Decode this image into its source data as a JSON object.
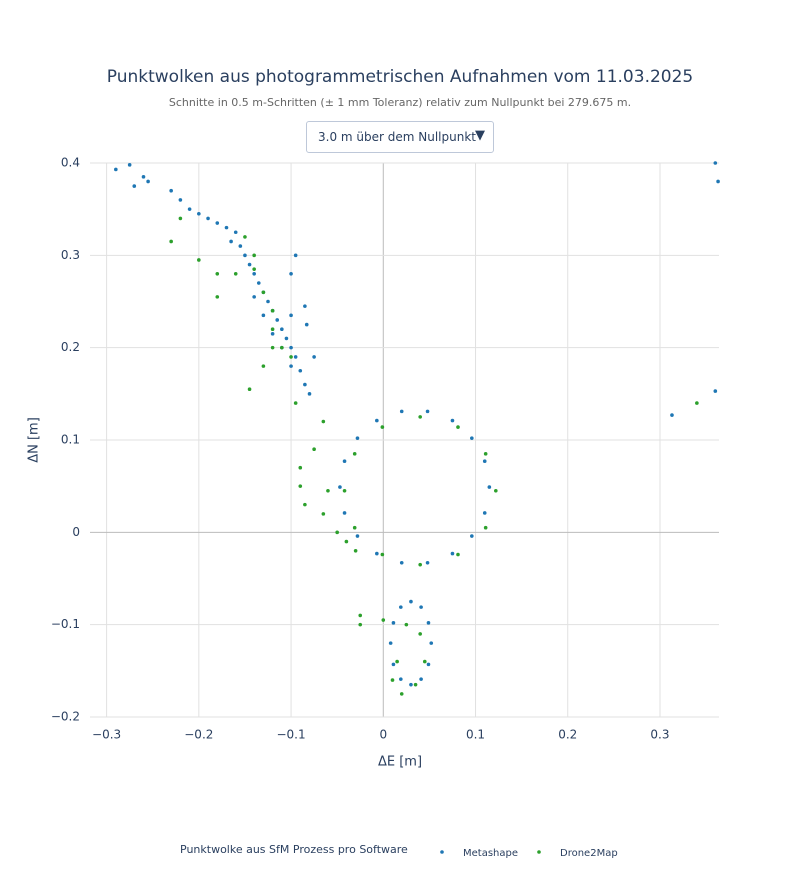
{
  "chart_data": {
    "type": "scatter",
    "title": "Punktwolken aus photogrammetrischen Aufnahmen vom 11.03.2025",
    "subtitle": "Schnitte in 0.5 m-Schritten (± 1 mm Toleranz) relativ zum Nullpunkt bei 279.675 m.",
    "dropdown": "3.0 m über dem Nullpunkt",
    "x_label": "ΔE [m]",
    "y_label": "ΔN [m]",
    "legend_title": "Punktwolke aus SfM Prozess pro Software",
    "xlim": [
      -0.318,
      0.364
    ],
    "ylim": [
      -0.2,
      0.4
    ],
    "xticks": [
      {
        "value": -0.3,
        "label": "−0.3"
      },
      {
        "value": -0.2,
        "label": "−0.2"
      },
      {
        "value": -0.1,
        "label": "−0.1"
      },
      0,
      0.1,
      0.2,
      0.3
    ],
    "yticks": [
      {
        "value": -0.2,
        "label": "−0.2"
      },
      {
        "value": -0.1,
        "label": "−0.1"
      },
      0,
      0.1,
      0.2,
      0.3,
      0.4
    ],
    "grid": true,
    "series": [
      {
        "name": "Metashape",
        "color": "#1f77b4",
        "x": [
          0.115,
          0.11,
          0.096,
          0.075,
          0.048,
          0.02,
          -0.007,
          -0.028,
          -0.042,
          -0.047,
          -0.042,
          -0.028,
          -0.007,
          0.02,
          0.048,
          0.075,
          0.096,
          0.11,
          0.052,
          0.049,
          0.041,
          0.03,
          0.019,
          0.011,
          0.008,
          0.011,
          0.019,
          0.03,
          0.041,
          0.049,
          -0.29,
          -0.275,
          -0.27,
          -0.26,
          -0.255,
          -0.23,
          -0.22,
          -0.21,
          -0.2,
          -0.19,
          -0.18,
          -0.17,
          -0.16,
          -0.165,
          -0.155,
          -0.15,
          -0.145,
          -0.14,
          -0.135,
          -0.13,
          -0.125,
          -0.12,
          -0.115,
          -0.11,
          -0.105,
          -0.1,
          -0.095,
          -0.09,
          -0.085,
          -0.08,
          -0.14,
          -0.13,
          -0.12,
          -0.11,
          -0.1,
          -0.1,
          -0.1,
          -0.085,
          -0.083,
          -0.075,
          -0.095,
          0.36,
          0.363,
          0.36,
          0.313
        ],
        "values": [
          0.049,
          0.077,
          0.102,
          0.121,
          0.131,
          0.131,
          0.121,
          0.102,
          0.077,
          0.049,
          0.021,
          -0.004,
          -0.023,
          -0.033,
          -0.033,
          -0.023,
          -0.004,
          0.021,
          -0.12,
          -0.098,
          -0.081,
          -0.075,
          -0.081,
          -0.098,
          -0.12,
          -0.143,
          -0.159,
          -0.165,
          -0.159,
          -0.143,
          0.393,
          0.398,
          0.375,
          0.385,
          0.38,
          0.37,
          0.36,
          0.35,
          0.345,
          0.34,
          0.335,
          0.33,
          0.325,
          0.315,
          0.31,
          0.3,
          0.29,
          0.28,
          0.27,
          0.26,
          0.25,
          0.24,
          0.23,
          0.22,
          0.21,
          0.2,
          0.19,
          0.175,
          0.16,
          0.15,
          0.255,
          0.235,
          0.215,
          0.2,
          0.18,
          0.235,
          0.28,
          0.245,
          0.225,
          0.19,
          0.3,
          0.4,
          0.38,
          0.153,
          0.127
        ]
      },
      {
        "name": "Drone2Map",
        "color": "#2ca02c",
        "x": [
          -0.22,
          -0.23,
          -0.2,
          -0.18,
          -0.18,
          -0.15,
          -0.14,
          -0.14,
          -0.13,
          -0.12,
          -0.12,
          -0.11,
          -0.1,
          -0.12,
          -0.13,
          -0.145,
          -0.095,
          -0.16,
          -0.065,
          -0.075,
          -0.09,
          -0.09,
          -0.085,
          -0.065,
          -0.06,
          -0.05,
          -0.04,
          -0.03,
          0.122,
          0.111,
          0.081,
          0.04,
          -0.001,
          -0.031,
          -0.042,
          -0.031,
          -0.001,
          0.04,
          0.081,
          0.111,
          0.015,
          0.01,
          0.02,
          0.035,
          0.045,
          0.04,
          0.025,
          -0.025,
          -0.025,
          0.0,
          0.34
        ],
        "values": [
          0.34,
          0.315,
          0.295,
          0.28,
          0.255,
          0.32,
          0.3,
          0.285,
          0.26,
          0.24,
          0.22,
          0.2,
          0.19,
          0.2,
          0.18,
          0.155,
          0.14,
          0.28,
          0.12,
          0.09,
          0.07,
          0.05,
          0.03,
          0.02,
          0.045,
          0.0,
          -0.01,
          -0.02,
          0.045,
          0.085,
          0.114,
          0.125,
          0.114,
          0.085,
          0.045,
          0.005,
          -0.024,
          -0.035,
          -0.024,
          0.005,
          -0.14,
          -0.16,
          -0.175,
          -0.165,
          -0.14,
          -0.11,
          -0.1,
          -0.09,
          -0.1,
          -0.095,
          0.14
        ]
      }
    ]
  }
}
